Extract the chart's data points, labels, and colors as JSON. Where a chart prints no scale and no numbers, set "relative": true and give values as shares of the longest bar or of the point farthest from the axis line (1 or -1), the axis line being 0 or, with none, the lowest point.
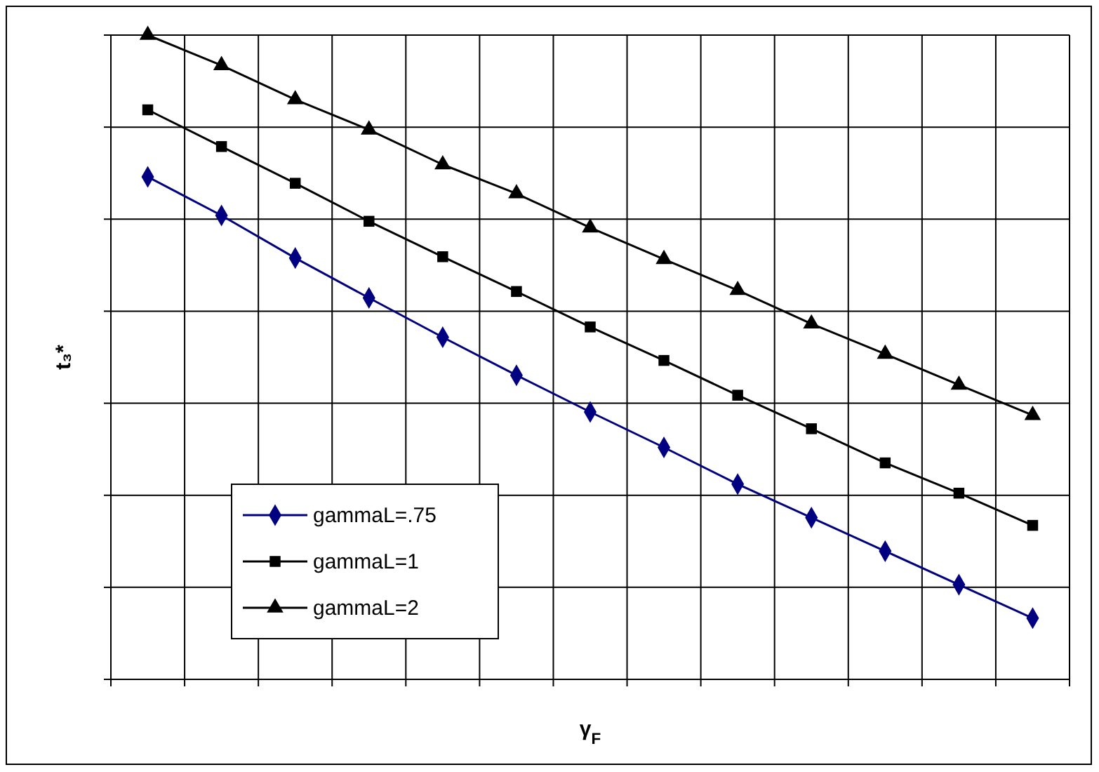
{
  "chart_data": {
    "type": "line",
    "relative": true,
    "xlabel": "γ$_{F}$",
    "ylabel": "t₃*",
    "grid": true,
    "legend": "bottom left",
    "line_style": "solid",
    "categories": [
      null,
      null,
      null,
      null,
      null,
      null,
      null,
      null,
      null,
      null,
      null,
      null,
      null
    ],
    "series": [
      {
        "name": "gammaL=.75",
        "color": "#000080",
        "marker": "diamond",
        "values": [
          0.78,
          0.72,
          0.654,
          0.592,
          0.531,
          0.472,
          0.415,
          0.36,
          0.303,
          0.251,
          0.199,
          0.147,
          0.095
        ]
      },
      {
        "name": "gammaL=1",
        "color": "#000000",
        "marker": "square",
        "values": [
          0.884,
          0.827,
          0.77,
          0.711,
          0.656,
          0.602,
          0.547,
          0.495,
          0.441,
          0.389,
          0.336,
          0.289,
          0.239
        ]
      },
      {
        "name": "gammaL=2",
        "color": "#000000",
        "marker": "triangle",
        "values": [
          1,
          0.953,
          0.9,
          0.853,
          0.799,
          0.754,
          0.701,
          0.652,
          0.604,
          0.552,
          0.505,
          0.457,
          0.41
        ]
      }
    ]
  }
}
